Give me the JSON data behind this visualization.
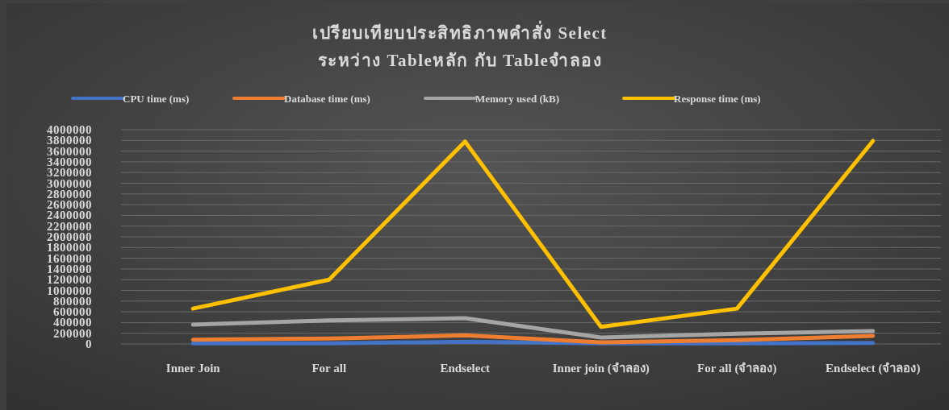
{
  "chart_data": {
    "type": "line",
    "title": "เปรียบเทียบประสิทธิภาพคำสั่ง Select",
    "subtitle": "ระหว่าง Tableหลัก กับ Tableจำลอง",
    "categories": [
      "Inner Join",
      "For all",
      "Endselect",
      "Inner join (จำลอง)",
      "For all (จำลอง)",
      "Endselect (จำลอง)"
    ],
    "series": [
      {
        "name": "CPU time (ms)",
        "color": "#4472c4",
        "values": [
          10000,
          10000,
          40000,
          10000,
          10000,
          20000
        ]
      },
      {
        "name": "Database time (ms)",
        "color": "#ed7d31",
        "values": [
          80000,
          100000,
          160000,
          30000,
          70000,
          150000
        ]
      },
      {
        "name": "Memory used (kB)",
        "color": "#a5a5a5",
        "values": [
          360000,
          440000,
          480000,
          120000,
          190000,
          240000
        ]
      },
      {
        "name": "Response time (ms)",
        "color": "#ffc000",
        "values": [
          660000,
          1200000,
          3780000,
          320000,
          660000,
          3790000
        ]
      }
    ],
    "ylim": [
      0,
      4000000
    ],
    "yticks": [
      0,
      200000,
      400000,
      600000,
      800000,
      1000000,
      1200000,
      1400000,
      1600000,
      1800000,
      2000000,
      2200000,
      2400000,
      2600000,
      2800000,
      3000000,
      3200000,
      3400000,
      3600000,
      3800000,
      4000000
    ],
    "grid": "y",
    "legend": "top",
    "marker": "none",
    "line_style": "solid"
  }
}
